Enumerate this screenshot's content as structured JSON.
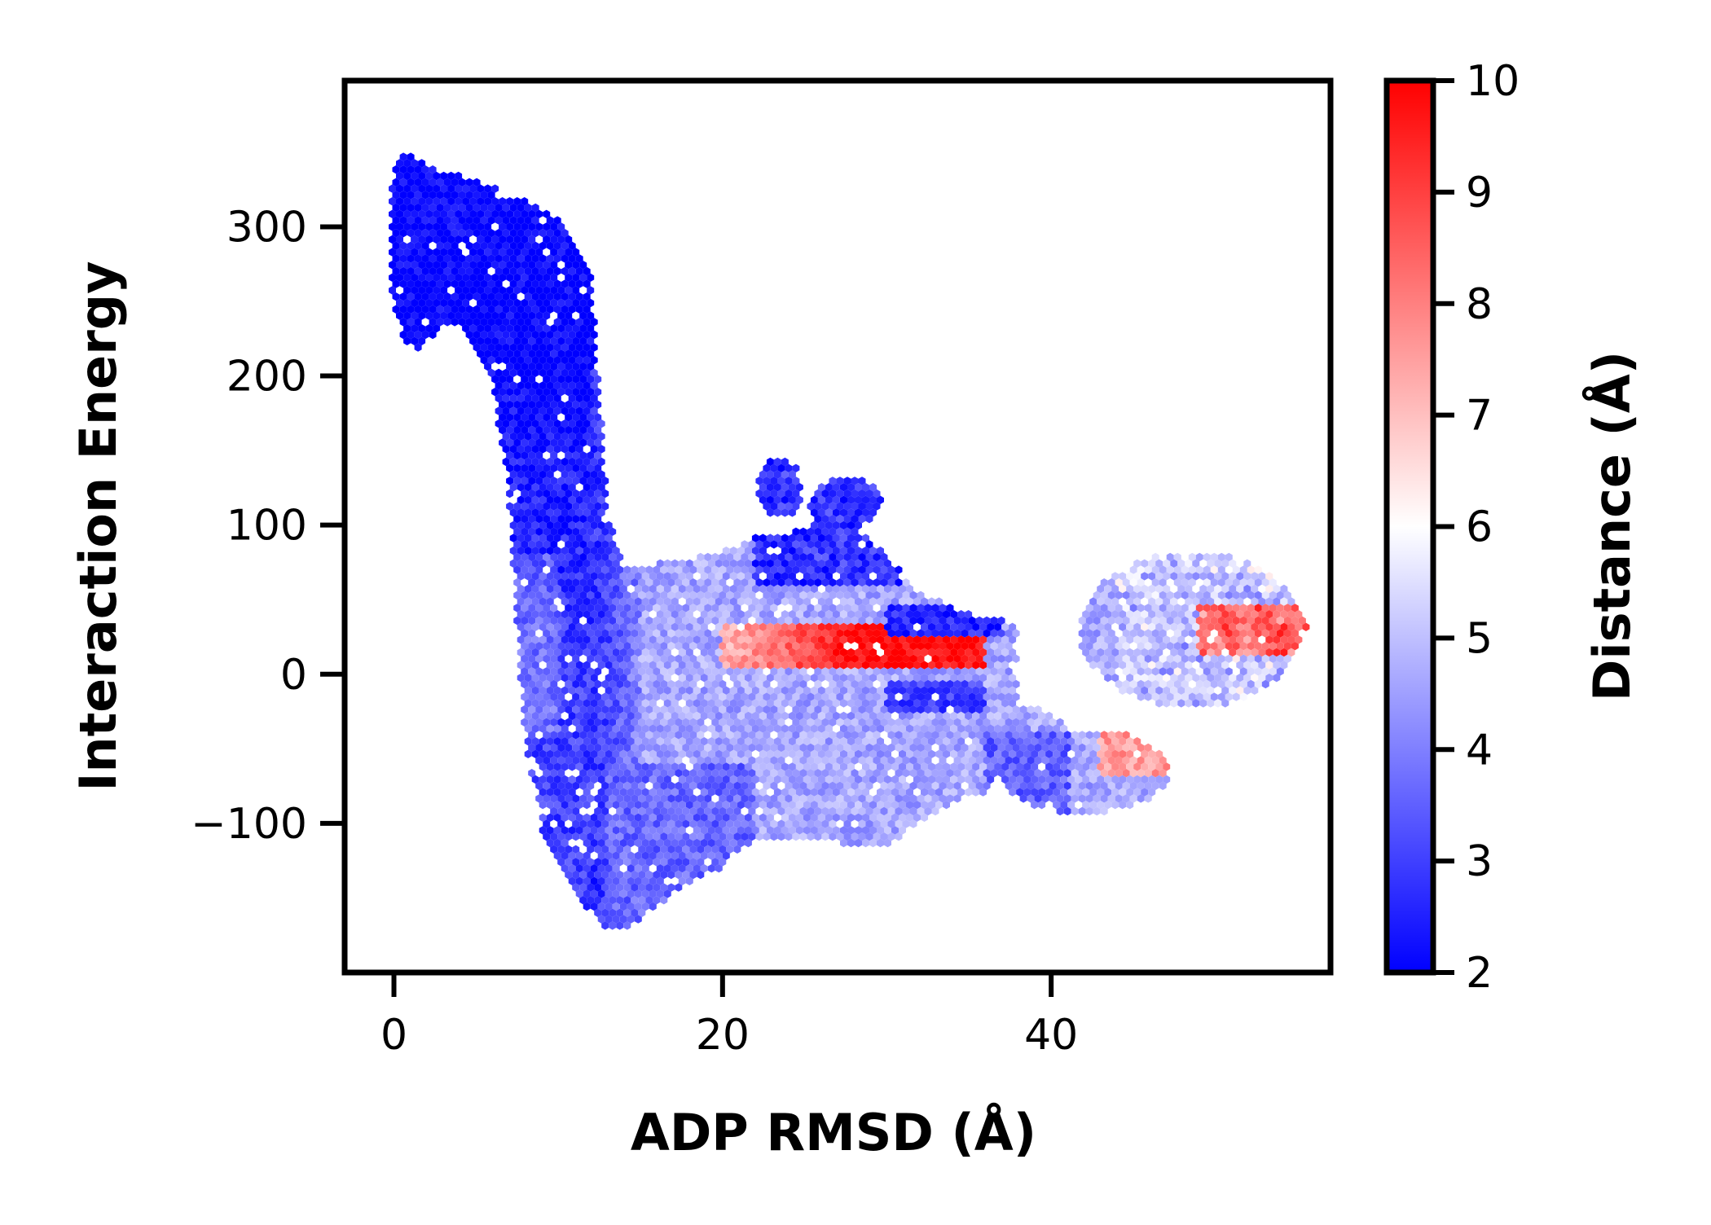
{
  "chart_data": {
    "type": "heatmap",
    "subtype": "hexbin",
    "xlabel": "ADP RMSD (Å)",
    "ylabel": "Interaction Energy",
    "xlim": [
      -3,
      57
    ],
    "ylim": [
      -200,
      398
    ],
    "xticks": [
      0,
      20,
      40
    ],
    "yticks": [
      -100,
      0,
      100,
      200,
      300
    ],
    "x_tick_labels": [
      "0",
      "20",
      "40"
    ],
    "y_tick_labels": [
      "−100",
      "0",
      "100",
      "200",
      "300"
    ],
    "grid": false,
    "colorbar": {
      "label": "Distance (Å)",
      "range": [
        2,
        10
      ],
      "ticks": [
        2,
        3,
        4,
        5,
        6,
        7,
        8,
        9,
        10
      ],
      "tick_labels": [
        "2",
        "3",
        "4",
        "5",
        "6",
        "7",
        "8",
        "9",
        "10"
      ],
      "colormap": "bwr",
      "colors": {
        "low": "#0000ff",
        "mid": "#ffffff",
        "high": "#ff0000"
      }
    },
    "regions": [
      {
        "name": "top-left dense cluster",
        "x_range": [
          0,
          12
        ],
        "y_range": [
          200,
          365
        ],
        "distance": 2.0
      },
      {
        "name": "vertical descending band",
        "x_range": [
          5,
          14
        ],
        "y_range": [
          -170,
          200
        ],
        "distance": 2.6
      },
      {
        "name": "central spread",
        "x_range": [
          13,
          36
        ],
        "y_range": [
          -120,
          60
        ],
        "distance": 4.6
      },
      {
        "name": "upper bump",
        "x_range": [
          22,
          30
        ],
        "y_range": [
          60,
          150
        ],
        "distance": 2.4
      },
      {
        "name": "red stripe",
        "x_range": [
          22,
          38
        ],
        "y_range": [
          5,
          30
        ],
        "distance": 9.5
      },
      {
        "name": "right cluster",
        "x_range": [
          42,
          55
        ],
        "y_range": [
          -30,
          90
        ],
        "distance": 4.5
      },
      {
        "name": "right red tail",
        "x_range": [
          49,
          55
        ],
        "y_range": [
          15,
          45
        ],
        "distance": 8.3
      },
      {
        "name": "lower-right cluster",
        "x_range": [
          37,
          47
        ],
        "y_range": [
          -100,
          -40
        ],
        "distance": 4.2
      }
    ]
  }
}
